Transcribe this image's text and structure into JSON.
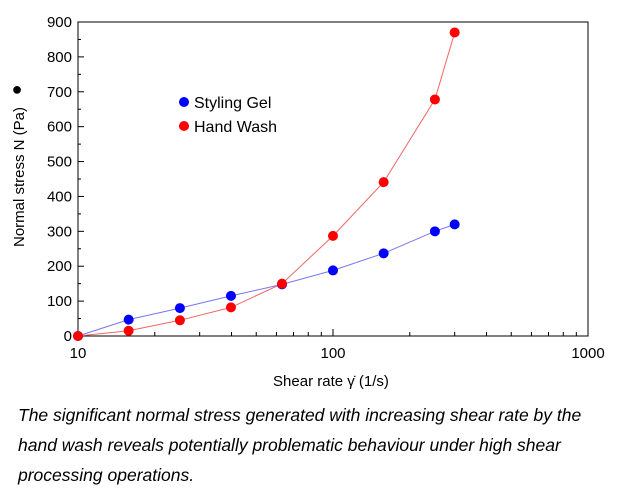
{
  "chart_data": {
    "type": "scatter",
    "xscale": "log",
    "xlim": [
      10,
      1000
    ],
    "ylim": [
      0,
      900
    ],
    "xticks": [
      "10",
      "100",
      "1000"
    ],
    "yticks": [
      "0",
      "100",
      "200",
      "300",
      "400",
      "500",
      "600",
      "700",
      "800",
      "900"
    ],
    "xlabel": "Shear rate  γ̇  (1/s)",
    "ylabel": "Normal stress  N  (Pa)",
    "ylabel_marker": "●",
    "grid": false,
    "legend_position": "upper-left",
    "series": [
      {
        "name": "Styling Gel",
        "color": "#0000ff",
        "line_color": "#7777ee",
        "x": [
          10,
          15.8,
          25.1,
          39.8,
          63.1,
          100,
          158,
          251,
          300
        ],
        "y": [
          0,
          47,
          80,
          115,
          148,
          188,
          237,
          300,
          320
        ]
      },
      {
        "name": "Hand Wash",
        "color": "#ff0000",
        "line_color": "#ee6666",
        "x": [
          10,
          15.8,
          25.1,
          39.8,
          63.1,
          100,
          158,
          251,
          300
        ],
        "y": [
          0,
          15,
          45,
          82,
          150,
          287,
          441,
          678,
          870
        ]
      }
    ]
  },
  "caption": "The significant normal stress generated with increasing shear rate by the hand wash reveals potentially problematic behaviour under high shear processing operations."
}
